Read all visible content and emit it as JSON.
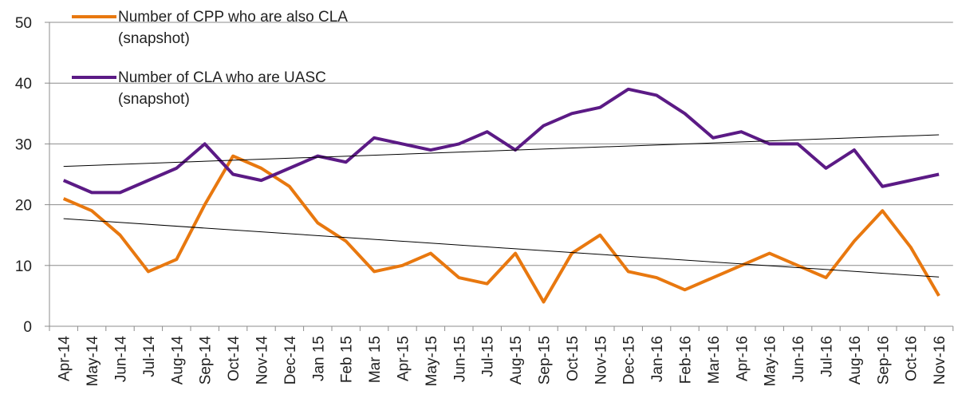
{
  "chart_data": {
    "type": "line",
    "categories": [
      "Apr-14",
      "May-14",
      "Jun-14",
      "Jul-14",
      "Aug-14",
      "Sep-14",
      "Oct-14",
      "Nov-14",
      "Dec-14",
      "Jan 15",
      "Feb 15",
      "Mar 15",
      "Apr-15",
      "May-15",
      "Jun-15",
      "Jul-15",
      "Aug-15",
      "Sep-15",
      "Oct-15",
      "Nov-15",
      "Dec-15",
      "Jan-16",
      "Feb-16",
      "Mar-16",
      "Apr-16",
      "May-16",
      "Jun-16",
      "Jul-16",
      "Aug-16",
      "Sep-16",
      "Oct-16",
      "Nov-16"
    ],
    "series": [
      {
        "name": "Number of CPP who are also CLA (snapshot)",
        "color": "#e8780f",
        "values": [
          21,
          19,
          15,
          9,
          11,
          20,
          28,
          26,
          23,
          17,
          14,
          9,
          10,
          12,
          8,
          7,
          12,
          4,
          12,
          15,
          9,
          8,
          6,
          8,
          10,
          12,
          10,
          8,
          14,
          19,
          13,
          5
        ],
        "trend": [
          17.7,
          8.1
        ]
      },
      {
        "name": "Number of CLA who are UASC (snapshot)",
        "color": "#5b1a85",
        "values": [
          24,
          22,
          22,
          24,
          26,
          30,
          25,
          24,
          26,
          28,
          27,
          31,
          30,
          29,
          30,
          32,
          29,
          33,
          35,
          36,
          39,
          38,
          35,
          31,
          32,
          30,
          30,
          26,
          29,
          23,
          24,
          25
        ],
        "trend": [
          26.3,
          31.5
        ]
      }
    ],
    "ylim": [
      0,
      50
    ],
    "yticks": [
      0,
      10,
      20,
      30,
      40,
      50
    ],
    "grid": true,
    "legend": "top-left"
  }
}
